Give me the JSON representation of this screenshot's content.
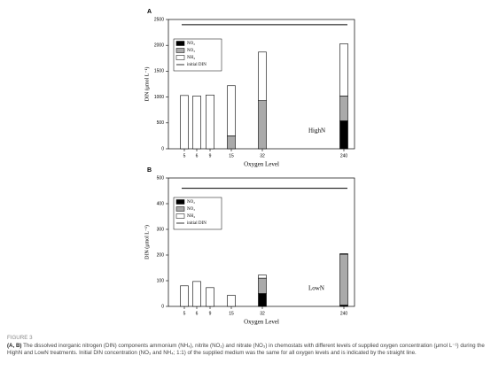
{
  "chart_data": [
    {
      "type": "bar",
      "stacked": true,
      "panel_label": "A",
      "annotation": "HighN",
      "xlabel": "Oxygen Level",
      "ylabel": "DIN (μmol L⁻¹)",
      "categories": [
        "5",
        "6",
        "9",
        "15",
        "32",
        "240"
      ],
      "series": [
        {
          "name": "NO₂",
          "color": "#000000",
          "values": [
            0,
            0,
            0,
            0,
            0,
            540
          ]
        },
        {
          "name": "NO₃",
          "color": "#aaaaaa",
          "values": [
            0,
            0,
            0,
            250,
            930,
            480
          ]
        },
        {
          "name": "NH₄",
          "color": "#ffffff",
          "values": [
            1030,
            1020,
            1040,
            970,
            940,
            1010
          ]
        }
      ],
      "reference_line": {
        "name": "initial DIN",
        "value": 2400
      },
      "ylim": [
        0,
        2500
      ],
      "yticks": [
        0,
        500,
        1000,
        1500,
        2000,
        2500
      ]
    },
    {
      "type": "bar",
      "stacked": true,
      "panel_label": "B",
      "annotation": "LowN",
      "xlabel": "Oxygen Level",
      "ylabel": "DIN (μmol L⁻¹)",
      "categories": [
        "5",
        "6",
        "9",
        "15",
        "32",
        "240"
      ],
      "series": [
        {
          "name": "NO₂",
          "color": "#000000",
          "values": [
            0,
            0,
            0,
            0,
            50,
            5
          ]
        },
        {
          "name": "NO₃",
          "color": "#aaaaaa",
          "values": [
            0,
            0,
            0,
            0,
            60,
            198
          ]
        },
        {
          "name": "NH₄",
          "color": "#ffffff",
          "values": [
            80,
            97,
            73,
            43,
            12,
            2
          ]
        }
      ],
      "reference_line": {
        "name": "initial DIN",
        "value": 460
      },
      "ylim": [
        0,
        500
      ],
      "yticks": [
        0,
        100,
        200,
        300,
        400,
        500
      ]
    }
  ],
  "figure": {
    "label": "FIGURE 3",
    "caption_bold": "(A, B)",
    "caption": "The dissolved inorganic nitrogen (DIN) components ammonium (NH₄), nitrite (NO₂) and nitrate (NO₃) in chemostats with different levels of supplied oxygen concentration (μmol L⁻¹) during the HighN and LowN treatments. Initial DIN concentration (NO₃ and NH₄; 1:1) of the supplied medium was the same for all oxygen levels and is indicated by the straight line."
  }
}
